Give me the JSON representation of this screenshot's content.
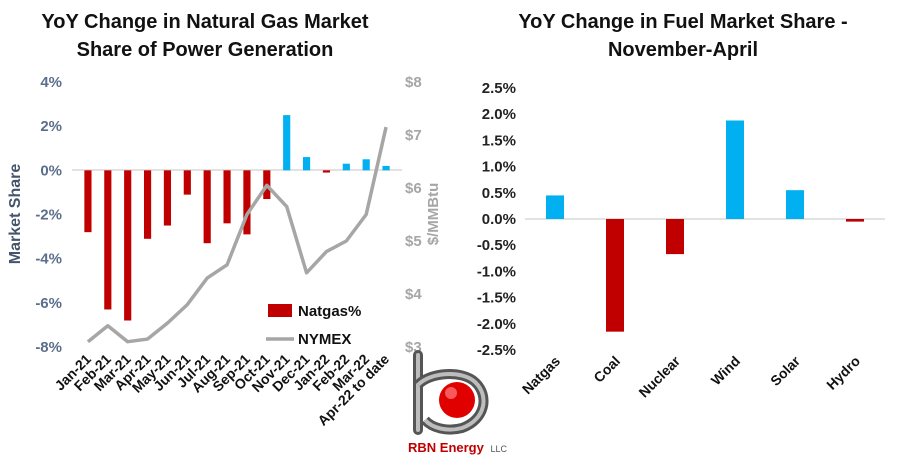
{
  "colors": {
    "negative": "#c00000",
    "positive": "#00b0f0",
    "nymex": "#a6a6a6",
    "logo_red": "#e00000"
  },
  "chart_data": [
    {
      "type": "bar+line",
      "title_lines": [
        "YoY Change in Natural Gas Market",
        "Share of Power Generation"
      ],
      "categories": [
        "Jan-21",
        "Feb-21",
        "Mar-21",
        "Apr-21",
        "May-21",
        "Jun-21",
        "Jul-21",
        "Aug-21",
        "Sep-21",
        "Oct-21",
        "Nov-21",
        "Dec-21",
        "Jan-22",
        "Feb-22",
        "Mar-22",
        "Apr-22 to date"
      ],
      "series": [
        {
          "name": "Natgas%",
          "kind": "bar",
          "axis": "left",
          "values": [
            -2.8,
            -6.3,
            -6.8,
            -3.1,
            -2.5,
            -1.1,
            -3.3,
            -2.4,
            -2.9,
            -1.3,
            2.5,
            0.6,
            -0.1,
            0.3,
            0.5,
            0.2
          ]
        },
        {
          "name": "NYMEX",
          "kind": "line",
          "axis": "right",
          "values": [
            3.1,
            3.4,
            3.1,
            3.15,
            3.45,
            3.8,
            4.3,
            4.55,
            5.5,
            6.05,
            5.65,
            4.4,
            4.8,
            5.0,
            5.5,
            7.15
          ]
        }
      ],
      "ylabel": "Market Share",
      "ylim": [
        -8,
        4
      ],
      "yticks": [
        "4%",
        "2%",
        "0%",
        "-2%",
        "-4%",
        "-6%",
        "-8%"
      ],
      "y2label": "$/MMBtu",
      "y2lim": [
        3,
        8
      ],
      "y2ticks": [
        "$8",
        "$7",
        "$6",
        "$5",
        "$4",
        "$3"
      ],
      "legend_position": "bottom-right",
      "grid": false
    },
    {
      "type": "bar",
      "title_lines": [
        "YoY Change in Fuel Market Share -",
        "November-April"
      ],
      "categories": [
        "Natgas",
        "Coal",
        "Nuclear",
        "Wind",
        "Solar",
        "Hydro"
      ],
      "values": [
        0.45,
        -2.15,
        -0.67,
        1.88,
        0.55,
        -0.05
      ],
      "ylim": [
        -2.5,
        2.5
      ],
      "yticks": [
        "2.5%",
        "2.0%",
        "1.5%",
        "1.0%",
        "0.5%",
        "0.0%",
        "-0.5%",
        "-1.0%",
        "-1.5%",
        "-2.0%",
        "-2.5%"
      ],
      "grid": false
    }
  ],
  "logo": {
    "text": "RBN Energy",
    "suffix": "LLC"
  }
}
